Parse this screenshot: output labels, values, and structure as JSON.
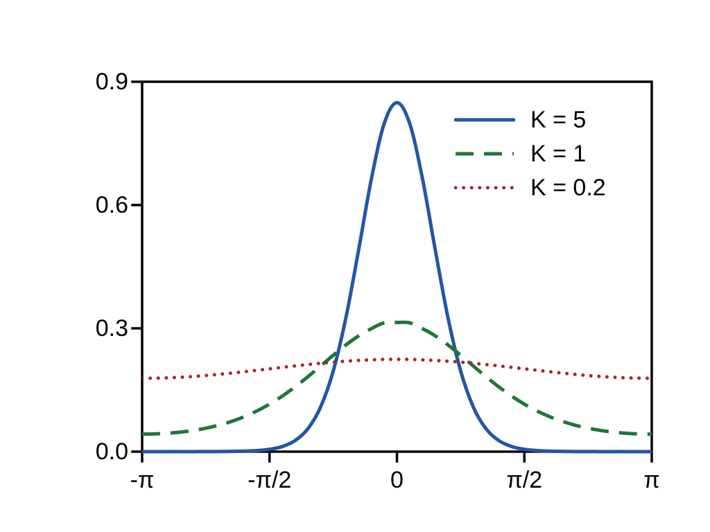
{
  "figure": {
    "background": "#ffffff",
    "axis_color": "#000000",
    "text_color": "#000000"
  },
  "chart_data": {
    "type": "line",
    "title": "",
    "xlabel": "",
    "ylabel": "",
    "grid": false,
    "legend": {
      "position": "upper right",
      "frame": false
    },
    "xlim_pi": [
      -1,
      1
    ],
    "ylim": [
      0,
      0.9
    ],
    "x_ticks": [
      {
        "value_pi": -1,
        "label": "-π"
      },
      {
        "value_pi": -0.5,
        "label": "-π/2"
      },
      {
        "value_pi": 0,
        "label": "0"
      },
      {
        "value_pi": 0.5,
        "label": "π/2"
      },
      {
        "value_pi": 1,
        "label": "π"
      }
    ],
    "y_ticks": [
      {
        "value": 0.0,
        "label": "0.0"
      },
      {
        "value": 0.3,
        "label": "0.3"
      },
      {
        "value": 0.6,
        "label": "0.6"
      },
      {
        "value": 0.9,
        "label": "0.9"
      }
    ],
    "x_pi": [
      -1,
      -0.95,
      -0.9,
      -0.85,
      -0.8,
      -0.75,
      -0.7,
      -0.65,
      -0.6,
      -0.55,
      -0.5,
      -0.45,
      -0.4,
      -0.35,
      -0.3,
      -0.25,
      -0.2,
      -0.15,
      -0.1,
      -0.05,
      0,
      0.05,
      0.1,
      0.15,
      0.2,
      0.25,
      0.3,
      0.35,
      0.4,
      0.45,
      0.5,
      0.55,
      0.6,
      0.65,
      0.7,
      0.75,
      0.8,
      0.85,
      0.9,
      0.95,
      1
    ],
    "series": [
      {
        "id": "k5",
        "name": "K = 5",
        "color": "#2356a5",
        "style": "solid",
        "values": [
          0,
          0,
          0.0001,
          0.0001,
          0.0001,
          0.0002,
          0.0003,
          0.0006,
          0.0012,
          0.0026,
          0.0057,
          0.0125,
          0.0268,
          0.0554,
          0.1081,
          0.1963,
          0.3267,
          0.4922,
          0.6646,
          0.7983,
          0.849,
          0.7983,
          0.6646,
          0.4922,
          0.3267,
          0.1963,
          0.1081,
          0.0554,
          0.0268,
          0.0125,
          0.0057,
          0.0026,
          0.0012,
          0.0006,
          0.0003,
          0.0002,
          0.0001,
          0.0001,
          0.0001,
          0,
          0
        ]
      },
      {
        "id": "k1",
        "name": "K = 1",
        "color": "#1e7639",
        "style": "dashed",
        "values": [
          0.0426,
          0.0431,
          0.0447,
          0.0475,
          0.0515,
          0.057,
          0.0642,
          0.0734,
          0.0849,
          0.0989,
          0.1156,
          0.1352,
          0.1575,
          0.1821,
          0.2082,
          0.2346,
          0.2597,
          0.2819,
          0.2994,
          0.3134,
          0.3144,
          0.3134,
          0.2994,
          0.2819,
          0.2597,
          0.2346,
          0.2082,
          0.1821,
          0.1575,
          0.1352,
          0.1156,
          0.0989,
          0.0849,
          0.0734,
          0.0642,
          0.057,
          0.0515,
          0.0475,
          0.0447,
          0.0431,
          0.0426
        ]
      },
      {
        "id": "k02",
        "name": "K = 0.2",
        "color": "#a5282f",
        "style": "dotted",
        "values": [
          0.1785,
          0.1788,
          0.1796,
          0.181,
          0.1829,
          0.1852,
          0.188,
          0.1911,
          0.1944,
          0.1979,
          0.2015,
          0.2051,
          0.2086,
          0.2119,
          0.215,
          0.2178,
          0.2201,
          0.222,
          0.2234,
          0.2244,
          0.2245,
          0.2244,
          0.2234,
          0.222,
          0.2201,
          0.2178,
          0.215,
          0.2119,
          0.2086,
          0.2051,
          0.2015,
          0.1979,
          0.1944,
          0.1911,
          0.188,
          0.1852,
          0.1829,
          0.181,
          0.1796,
          0.1788,
          0.1785
        ]
      }
    ]
  }
}
